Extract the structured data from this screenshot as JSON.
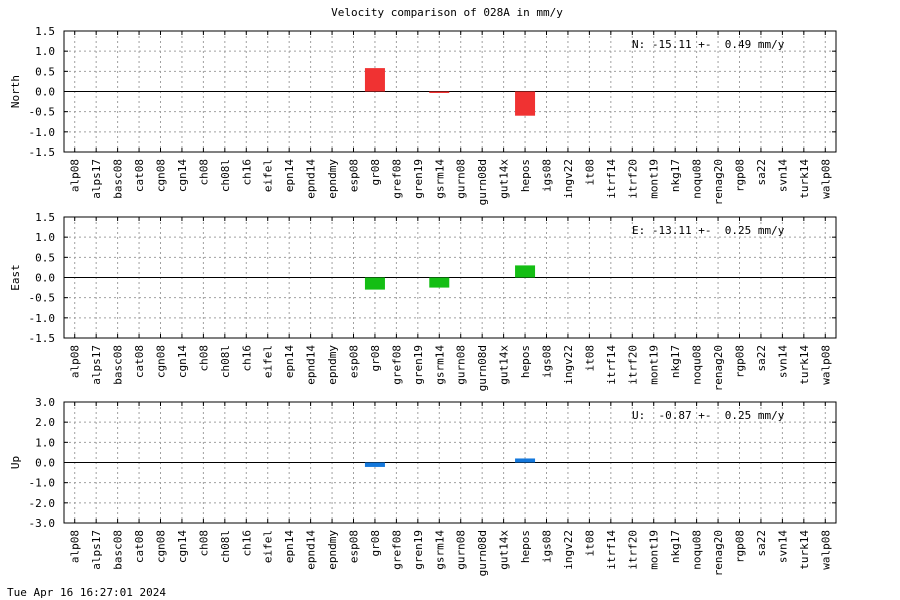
{
  "title": "Velocity comparison of 028A in mm/y",
  "timestamp": "Tue Apr 16 16:27:01 2024",
  "chart_data": [
    {
      "type": "bar",
      "ylabel": "North",
      "annotation": "N: -15.11 +-  0.49 mm/y",
      "ylim": [
        -1.5,
        1.5
      ],
      "yticks": [
        "1.5",
        "1.0",
        "0.5",
        "0.0",
        "-0.5",
        "-1.0",
        "-1.5"
      ],
      "grid": true,
      "color": "#f03232",
      "categories": [
        "alp08",
        "alps17",
        "basc08",
        "cat08",
        "cgn08",
        "cgn14",
        "ch08",
        "ch08l",
        "ch16",
        "eifel",
        "epn14",
        "epnd14",
        "epndmy",
        "esp08",
        "gr08",
        "gref08",
        "gren19",
        "gsrm14",
        "gurn08",
        "gurn08d",
        "gut14x",
        "hepos",
        "igs08",
        "ingv22",
        "it08",
        "itrf14",
        "itrf20",
        "mont19",
        "nkg17",
        "noqu08",
        "renag20",
        "rgp08",
        "sa22",
        "svn14",
        "turk14",
        "walp08"
      ],
      "values": [
        0,
        0,
        0,
        0,
        0,
        0,
        0,
        0,
        0,
        0,
        0,
        0,
        0,
        0,
        0.58,
        0,
        0,
        -0.02,
        0,
        0,
        0,
        -0.6,
        0,
        0,
        0,
        0,
        0,
        0,
        0,
        0,
        0,
        0,
        0,
        0,
        0,
        0
      ]
    },
    {
      "type": "bar",
      "ylabel": "East",
      "annotation": "E: -13.11 +-  0.25 mm/y",
      "ylim": [
        -1.5,
        1.5
      ],
      "yticks": [
        "1.5",
        "1.0",
        "0.5",
        "0.0",
        "-0.5",
        "-1.0",
        "-1.5"
      ],
      "grid": true,
      "color": "#14be14",
      "categories": [
        "alp08",
        "alps17",
        "basc08",
        "cat08",
        "cgn08",
        "cgn14",
        "ch08",
        "ch08l",
        "ch16",
        "eifel",
        "epn14",
        "epnd14",
        "epndmy",
        "esp08",
        "gr08",
        "gref08",
        "gren19",
        "gsrm14",
        "gurn08",
        "gurn08d",
        "gut14x",
        "hepos",
        "igs08",
        "ingv22",
        "it08",
        "itrf14",
        "itrf20",
        "mont19",
        "nkg17",
        "noqu08",
        "renag20",
        "rgp08",
        "sa22",
        "svn14",
        "turk14",
        "walp08"
      ],
      "values": [
        0,
        0,
        0,
        0,
        0,
        0,
        0,
        0,
        0,
        0,
        0,
        0,
        0,
        0,
        -0.3,
        0,
        0,
        -0.25,
        0,
        0,
        0,
        0.3,
        0,
        0,
        0,
        0,
        0,
        0,
        0,
        0,
        0,
        0,
        0,
        0,
        0,
        0
      ]
    },
    {
      "type": "bar",
      "ylabel": "Up",
      "annotation": "U:  -0.87 +-  0.25 mm/y",
      "ylim": [
        -3.0,
        3.0
      ],
      "yticks": [
        "3.0",
        "2.0",
        "1.0",
        "0.0",
        "-1.0",
        "-2.0",
        "-3.0"
      ],
      "grid": true,
      "color": "#1478dc",
      "categories": [
        "alp08",
        "alps17",
        "basc08",
        "cat08",
        "cgn08",
        "cgn14",
        "ch08",
        "ch08l",
        "ch16",
        "eifel",
        "epn14",
        "epnd14",
        "epndmy",
        "esp08",
        "gr08",
        "gref08",
        "gren19",
        "gsrm14",
        "gurn08",
        "gurn08d",
        "gut14x",
        "hepos",
        "igs08",
        "ingv22",
        "it08",
        "itrf14",
        "itrf20",
        "mont19",
        "nkg17",
        "noqu08",
        "renag20",
        "rgp08",
        "sa22",
        "svn14",
        "turk14",
        "walp08"
      ],
      "values": [
        0,
        0,
        0,
        0,
        0,
        0,
        0,
        0,
        0,
        0,
        0,
        0,
        0,
        0,
        -0.22,
        0,
        0,
        0,
        0,
        0,
        0,
        0.2,
        0,
        0,
        0,
        0,
        0,
        0,
        0,
        0,
        0,
        0,
        0,
        0,
        0,
        0
      ]
    }
  ]
}
